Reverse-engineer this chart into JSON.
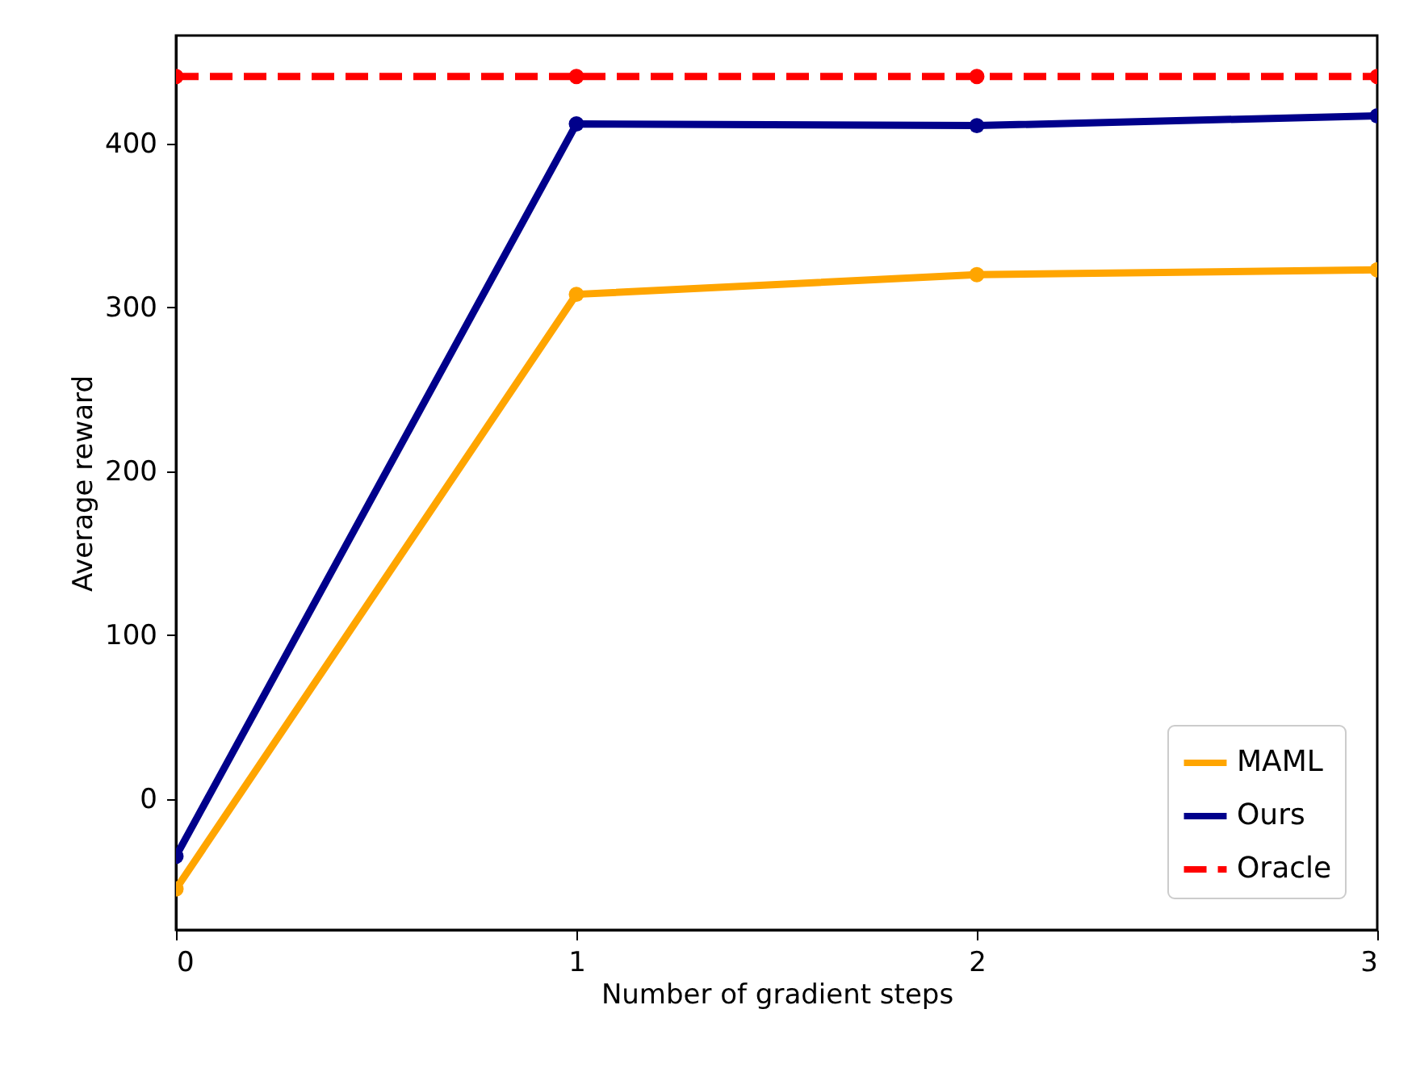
{
  "chart_data": {
    "type": "line",
    "xlabel": "Number of gradient steps",
    "ylabel": "Average reward",
    "x": [
      0,
      1,
      2,
      3
    ],
    "xlim": [
      0,
      3
    ],
    "xticks": [
      0,
      1,
      2,
      3
    ],
    "ylim": [
      -80,
      466
    ],
    "yticks": [
      0,
      100,
      200,
      300,
      400
    ],
    "grid": false,
    "legend": "bottom right",
    "marker": "circle",
    "series": [
      {
        "name": "MAML",
        "color": "#ffa500",
        "values": [
          -55,
          308,
          320,
          323
        ],
        "line_style": "solid"
      },
      {
        "name": "Ours",
        "color": "#00008b",
        "values": [
          -35,
          412,
          411,
          417
        ],
        "line_style": "solid"
      },
      {
        "name": "Oracle",
        "color": "#ff0000",
        "values": [
          441,
          441,
          441,
          441
        ],
        "line_style": "dashed"
      }
    ]
  }
}
